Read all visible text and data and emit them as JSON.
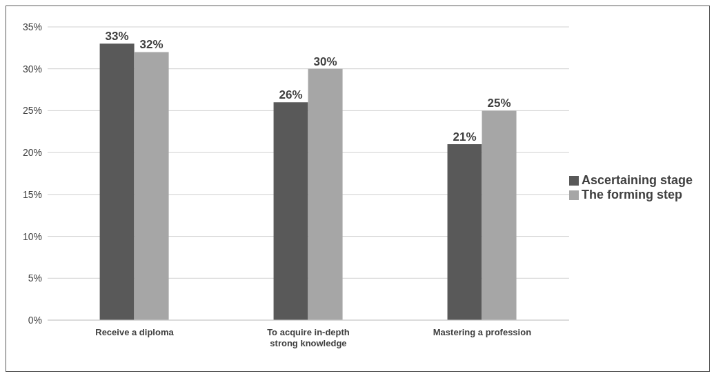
{
  "chart_data": {
    "type": "bar",
    "categories": [
      "Receive a diploma",
      "To acquire in-depth strong knowledge",
      "Mastering a profession"
    ],
    "series": [
      {
        "name": "Ascertaining stage",
        "color": "#595959",
        "values": [
          33,
          26,
          21
        ],
        "value_labels": [
          "33%",
          "26%",
          "21%"
        ]
      },
      {
        "name": "The forming step",
        "color": "#a6a6a6",
        "values": [
          32,
          30,
          25
        ],
        "value_labels": [
          "32%",
          "30%",
          "25%"
        ]
      }
    ],
    "ylim": [
      0,
      35
    ],
    "yticks": [
      {
        "value": 0,
        "label": "0%"
      },
      {
        "value": 5,
        "label": "5%"
      },
      {
        "value": 10,
        "label": "10%"
      },
      {
        "value": 15,
        "label": "15%"
      },
      {
        "value": 20,
        "label": "20%"
      },
      {
        "value": 25,
        "label": "25%"
      },
      {
        "value": 30,
        "label": "30%"
      },
      {
        "value": 35,
        "label": "35%"
      }
    ],
    "grid": "y",
    "legend": "right"
  }
}
